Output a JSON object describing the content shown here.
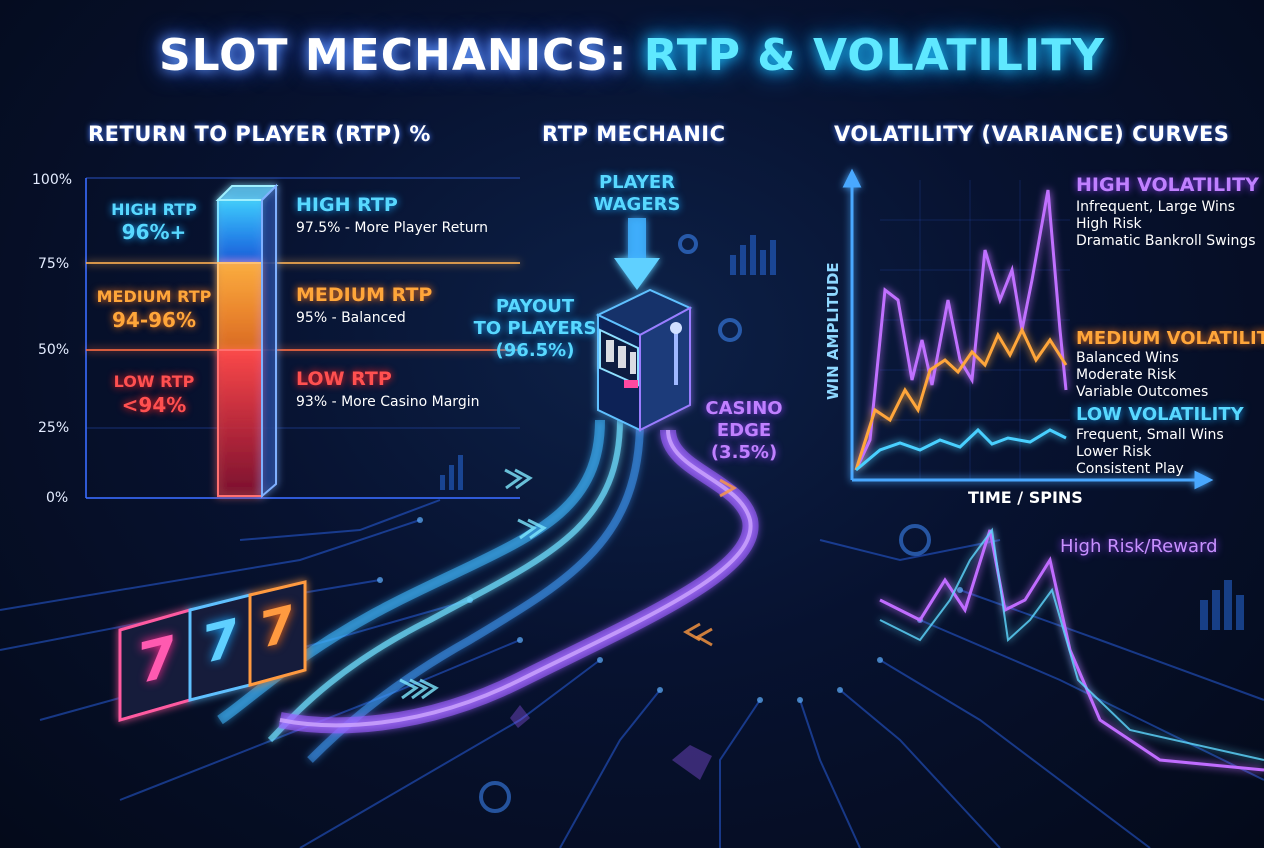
{
  "title": {
    "part1": "SLOT MECHANICS: ",
    "part2": "RTP & VOLATILITY"
  },
  "rtp_panel": {
    "heading": "RETURN TO PLAYER (RTP) %",
    "ticks": [
      "100%",
      "75%",
      "50%",
      "25%",
      "0%"
    ],
    "left_labels": [
      {
        "name": "HIGH RTP",
        "range": "96%+"
      },
      {
        "name": "MEDIUM RTP",
        "range": "94-96%"
      },
      {
        "name": "LOW RTP",
        "range": "<94%"
      }
    ],
    "right_labels": [
      {
        "name": "HIGH RTP",
        "desc": "97.5% - More Player Return"
      },
      {
        "name": "MEDIUM RTP",
        "desc": "95% - Balanced"
      },
      {
        "name": "LOW RTP",
        "desc": "93% - More Casino Margin"
      }
    ],
    "colors": {
      "high": "#58d8ff",
      "medium": "#ffa63a",
      "low": "#ff5050"
    }
  },
  "mechanic_panel": {
    "heading": "RTP MECHANIC",
    "wagers": [
      "PLAYER",
      "WAGERS"
    ],
    "payout": [
      "PAYOUT",
      "TO PLAYERS",
      "(96.5%)"
    ],
    "edge": [
      "CASINO",
      "EDGE",
      "(3.5%)"
    ]
  },
  "volatility_panel": {
    "heading": "VOLATILITY (VARIANCE) CURVES",
    "ylabel": "WIN AMPLITUDE",
    "xlabel": "TIME / SPINS",
    "legend": [
      {
        "name": "HIGH VOLATILITY",
        "lines": [
          "Infrequent, Large Wins",
          "High Risk",
          "Dramatic Bankroll Swings"
        ],
        "color": "#c080ff"
      },
      {
        "name": "MEDIUM VOLATILITY",
        "lines": [
          "Balanced Wins",
          "Moderate Risk",
          "Variable Outcomes"
        ],
        "color": "#ffa63a"
      },
      {
        "name": "LOW VOLATILITY",
        "lines": [
          "Frequent, Small Wins",
          "Lower Risk",
          "Consistent Play"
        ],
        "color": "#58d8ff"
      }
    ],
    "lower_label": "High Risk/Reward"
  },
  "reel_symbols": [
    "7",
    "7",
    "7"
  ]
}
